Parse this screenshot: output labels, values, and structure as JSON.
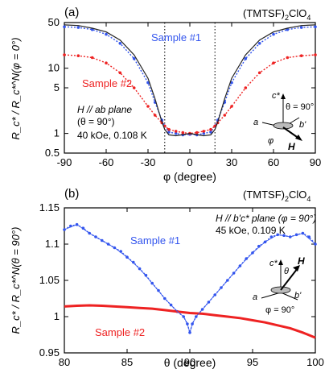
{
  "chart_data": [
    {
      "type": "line",
      "panel_label": "(a)",
      "compound": {
        "base": "(TMTSF)",
        "sub": "2",
        "tail": "ClO",
        "sub2": "4"
      },
      "xlabel": "φ (degree)",
      "ylabel": "R_c* / R_c*^N(φ = 0°)",
      "xlim": [
        -90,
        90
      ],
      "ylim": [
        0.5,
        50
      ],
      "y_scale": "log",
      "x_ticks": [
        "-90",
        "-60",
        "-30",
        "0",
        "30",
        "60",
        "90"
      ],
      "y_ticks": [
        "0.5",
        "1",
        "5",
        "10",
        "50"
      ],
      "vlines": [
        -18,
        18
      ],
      "annotations": {
        "field": "H // ab plane",
        "theta": "(θ = 90°)",
        "conditions": "40 kOe, 0.108 K",
        "inset_theta": "θ = 90°",
        "inset_axes": {
          "c": "c*",
          "a": "a",
          "b": "b'",
          "phi": "φ",
          "H": "H"
        }
      },
      "series": [
        {
          "name": "Sample #1",
          "color": "#3355ee",
          "style": "dotted-markers",
          "x": [
            -90,
            -80,
            -70,
            -60,
            -50,
            -40,
            -30,
            -25,
            -20,
            -18,
            -15,
            -10,
            -5,
            0,
            5,
            10,
            15,
            18,
            20,
            25,
            30,
            40,
            50,
            60,
            70,
            80,
            90
          ],
          "y": [
            43,
            42,
            39,
            33,
            24,
            14,
            6,
            3,
            1.6,
            1.3,
            1.05,
            1.0,
            0.95,
            0.97,
            0.95,
            1.0,
            1.05,
            1.3,
            1.6,
            3,
            6,
            14,
            24,
            33,
            39,
            42,
            43
          ]
        },
        {
          "name": "Sample #2",
          "color": "#ee2222",
          "style": "dotted-markers",
          "x": [
            -90,
            -80,
            -70,
            -60,
            -50,
            -40,
            -30,
            -25,
            -20,
            -18,
            -15,
            -10,
            -5,
            0,
            5,
            10,
            15,
            18,
            20,
            25,
            30,
            40,
            50,
            60,
            70,
            80,
            90
          ],
          "y": [
            16,
            15.5,
            14.5,
            12,
            8.5,
            5,
            2.6,
            1.9,
            1.45,
            1.3,
            1.15,
            1.08,
            1.03,
            1.0,
            1.03,
            1.08,
            1.15,
            1.3,
            1.45,
            1.9,
            2.6,
            5,
            8.5,
            12,
            14.5,
            15.5,
            16
          ]
        },
        {
          "name": "",
          "color": "#222222",
          "style": "solid",
          "x": [
            -90,
            -80,
            -70,
            -60,
            -50,
            -40,
            -30,
            -25,
            -20,
            -18,
            -15,
            -10,
            -5,
            0,
            5,
            10,
            15,
            18,
            20,
            25,
            30,
            40,
            50,
            60,
            70,
            80,
            90
          ],
          "y": [
            46,
            45,
            41,
            36,
            27,
            16,
            7,
            3.4,
            1.5,
            1.15,
            0.95,
            0.92,
            0.96,
            1.0,
            0.96,
            0.92,
            0.95,
            1.15,
            1.5,
            3.4,
            7,
            16,
            27,
            36,
            41,
            45,
            46
          ]
        }
      ]
    },
    {
      "type": "line",
      "panel_label": "(b)",
      "compound": {
        "base": "(TMTSF)",
        "sub": "2",
        "tail": "ClO",
        "sub2": "4"
      },
      "xlabel": "θ (degree)",
      "ylabel": "R_c* / R_c*^N(θ = 90°)",
      "xlim": [
        80,
        100
      ],
      "ylim": [
        0.95,
        1.15
      ],
      "x_ticks": [
        "80",
        "85",
        "90",
        "95",
        "100"
      ],
      "y_ticks": [
        "0.95",
        "1",
        "1.05",
        "1.1",
        "1.15"
      ],
      "annotations": {
        "field": "H // b'c* plane (φ = 90°)",
        "conditions": "45 kOe, 0.109 K",
        "inset_phi": "φ = 90°",
        "inset_axes": {
          "c": "c*",
          "a": "a",
          "b": "b'",
          "theta": "θ",
          "H": "H"
        }
      },
      "series": [
        {
          "name": "Sample #1",
          "color": "#3355ee",
          "style": "dotted-markers",
          "x": [
            80,
            80.5,
            81,
            81.5,
            82,
            82.5,
            83,
            83.5,
            84,
            84.5,
            85,
            85.5,
            86,
            86.5,
            87,
            87.5,
            88,
            88.5,
            89,
            89.5,
            89.8,
            90,
            90.2,
            90.5,
            91,
            91.5,
            92,
            92.5,
            93,
            93.5,
            94,
            94.5,
            95,
            95.5,
            96,
            96.5,
            97,
            97.5,
            98,
            98.5,
            99,
            99.5,
            100
          ],
          "y": [
            1.12,
            1.125,
            1.127,
            1.122,
            1.115,
            1.11,
            1.105,
            1.1,
            1.095,
            1.09,
            1.082,
            1.075,
            1.066,
            1.057,
            1.046,
            1.036,
            1.025,
            1.016,
            1.007,
            1.0,
            0.99,
            0.978,
            0.99,
            1.0,
            1.01,
            1.02,
            1.03,
            1.04,
            1.05,
            1.06,
            1.07,
            1.08,
            1.088,
            1.097,
            1.103,
            1.11,
            1.113,
            1.112,
            1.11,
            1.113,
            1.115,
            1.11,
            1.1
          ]
        },
        {
          "name": "Sample #2",
          "color": "#ee2222",
          "style": "thick-line",
          "x": [
            80,
            81,
            82,
            83,
            84,
            85,
            86,
            87,
            88,
            89,
            90,
            91,
            92,
            93,
            94,
            95,
            96,
            97,
            98,
            99,
            100
          ],
          "y": [
            1.014,
            1.015,
            1.0155,
            1.015,
            1.014,
            1.013,
            1.012,
            1.011,
            1.009,
            1.007,
            1.005,
            1.004,
            1.002,
            1.0,
            0.998,
            0.995,
            0.992,
            0.988,
            0.984,
            0.978,
            0.971
          ]
        },
        {
          "name": "",
          "color": "#3355ee",
          "style": "thin-line",
          "x": [
            80,
            81,
            82,
            83,
            84,
            85,
            86,
            87,
            88,
            89,
            89.5,
            89.8,
            90,
            90.2,
            90.5,
            91,
            92,
            93,
            94,
            95,
            96,
            97,
            98,
            99,
            100
          ],
          "y": [
            1.12,
            1.127,
            1.115,
            1.105,
            1.095,
            1.082,
            1.066,
            1.046,
            1.025,
            1.007,
            1.0,
            0.99,
            0.978,
            0.99,
            1.0,
            1.01,
            1.03,
            1.05,
            1.07,
            1.088,
            1.103,
            1.113,
            1.11,
            1.115,
            1.1
          ]
        }
      ]
    }
  ]
}
